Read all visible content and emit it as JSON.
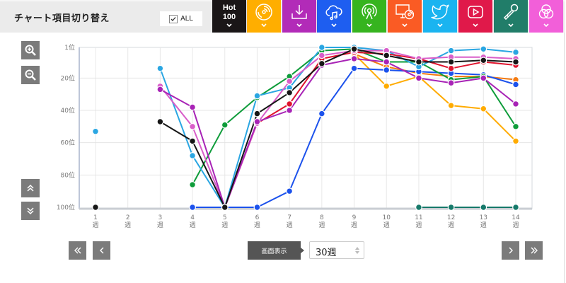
{
  "header": {
    "title": "チャート項目切り替え",
    "all_label": "ALL",
    "all_checked": true
  },
  "categories": [
    {
      "id": "hot100",
      "label_line1": "Hot",
      "label_line2": "100",
      "color": "#1a1617",
      "icon": "hot100-text"
    },
    {
      "id": "cd-disc",
      "color": "#ffae00",
      "icon": "cd-disc-icon"
    },
    {
      "id": "download",
      "color": "#b22bb8",
      "icon": "download-icon"
    },
    {
      "id": "cloud-music",
      "color": "#1e5ef0",
      "icon": "cloud-music-icon"
    },
    {
      "id": "radio",
      "color": "#36b41f",
      "icon": "radio-tower-icon"
    },
    {
      "id": "pc-disc",
      "color": "#fa5b24",
      "icon": "pc-disc-icon"
    },
    {
      "id": "twitter",
      "color": "#1ab4f0",
      "icon": "twitter-icon"
    },
    {
      "id": "video-play",
      "color": "#e0194a",
      "icon": "video-play-icon"
    },
    {
      "id": "microphone",
      "color": "#217d69",
      "icon": "microphone-icon"
    },
    {
      "id": "circles",
      "color": "#f25fd9",
      "icon": "three-circles-icon"
    }
  ],
  "side_controls": {
    "zoom_in": "zoom-in-icon",
    "zoom_out": "zoom-out-icon",
    "scroll_up": "double-chevron-up-icon",
    "scroll_down": "double-chevron-down-icon"
  },
  "footer": {
    "first_icon": "double-chevron-left-icon",
    "prev_icon": "chevron-left-icon",
    "display_label": "画面表示",
    "weeks_value": "30週",
    "next_icon": "chevron-right-icon",
    "last_icon": "double-chevron-right-icon"
  },
  "chart_data": {
    "type": "line",
    "title": "",
    "xlabel": "",
    "ylabel": "",
    "x": [
      "1",
      "2",
      "3",
      "4",
      "5",
      "6",
      "7",
      "8",
      "9",
      "10",
      "11",
      "12",
      "13",
      "14"
    ],
    "x_unit": "週",
    "y_ticks": [
      1,
      20,
      40,
      60,
      80,
      100
    ],
    "y_tick_labels": [
      "1位",
      "20位",
      "40位",
      "60位",
      "80位",
      "100位"
    ],
    "ylim": [
      1,
      100
    ],
    "y_inverted": true,
    "grid": true,
    "legend": "none",
    "series": [
      {
        "name": "pc-disc",
        "color": "#f47b12",
        "values": [
          null,
          null,
          null,
          null,
          null,
          null,
          null,
          null,
          5,
          13,
          17,
          19,
          19,
          21
        ]
      },
      {
        "name": "cd-disc",
        "color": "#ffab00",
        "values": [
          null,
          null,
          null,
          null,
          null,
          null,
          null,
          null,
          5,
          25,
          19,
          37,
          39,
          59
        ]
      },
      {
        "name": "microphone",
        "color": "#16796a",
        "values": [
          null,
          null,
          null,
          null,
          null,
          null,
          null,
          null,
          null,
          null,
          100,
          100,
          100,
          100
        ]
      },
      {
        "name": "cloud-music",
        "color": "#1c52ec",
        "values": [
          null,
          null,
          null,
          100,
          100,
          100,
          90,
          42,
          14,
          15,
          16,
          17,
          18,
          24
        ]
      },
      {
        "name": "radio",
        "color": "#0e9c3a",
        "values": [
          null,
          null,
          null,
          86,
          49,
          32,
          19,
          3,
          2,
          10,
          10,
          21,
          19,
          50
        ]
      },
      {
        "name": "twitter",
        "color": "#2aa6e2",
        "values": [
          53,
          null,
          14,
          68,
          100,
          31,
          26,
          1,
          1,
          3,
          13,
          3,
          2,
          4
        ]
      },
      {
        "name": "video-play",
        "color": "#e0142e",
        "values": [
          null,
          null,
          null,
          null,
          100,
          48,
          36,
          8,
          4,
          5,
          8,
          14,
          10,
          12
        ]
      },
      {
        "name": "circles",
        "color": "#d95ec9",
        "values": [
          null,
          null,
          25,
          50,
          100,
          48,
          22,
          6,
          3,
          3,
          8,
          7,
          7,
          8
        ]
      },
      {
        "name": "download",
        "color": "#a823b6",
        "values": [
          null,
          null,
          27,
          38,
          100,
          47,
          40,
          12,
          8,
          10,
          20,
          23,
          20,
          36
        ]
      },
      {
        "name": "hot100",
        "color": "#161616",
        "values": [
          100,
          null,
          47,
          59,
          100,
          42,
          29,
          11,
          2,
          6,
          10,
          10,
          9,
          10
        ]
      }
    ]
  }
}
